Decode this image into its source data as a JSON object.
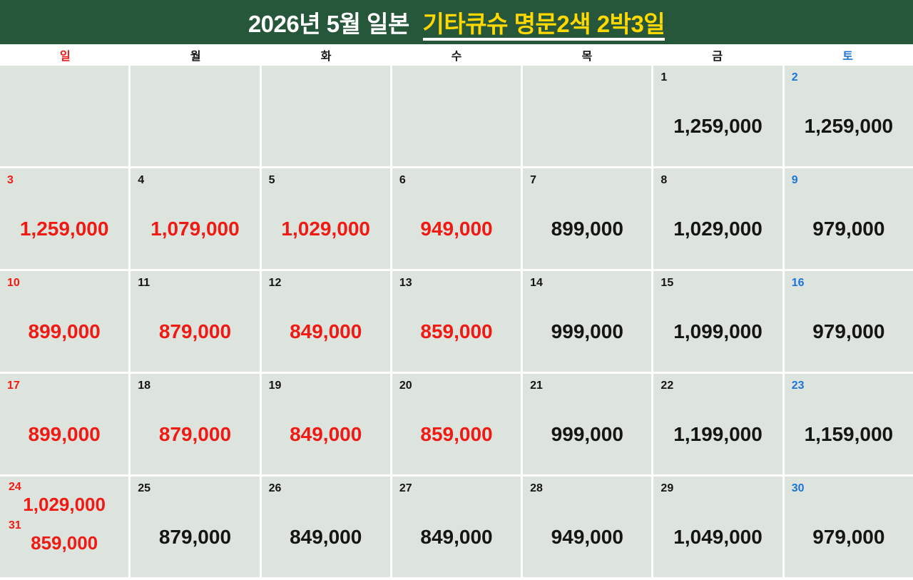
{
  "header": {
    "title_prefix": "2026년 5월 일본",
    "title_highlight": "기타큐슈 명문2색 2박3일"
  },
  "weekdays": [
    {
      "label": "일",
      "type": "sun"
    },
    {
      "label": "월",
      "type": "weekday"
    },
    {
      "label": "화",
      "type": "weekday"
    },
    {
      "label": "수",
      "type": "weekday"
    },
    {
      "label": "목",
      "type": "weekday"
    },
    {
      "label": "금",
      "type": "weekday"
    },
    {
      "label": "토",
      "type": "sat"
    }
  ],
  "colors": {
    "header_bg": "#27573a",
    "highlight": "#ffd800",
    "cell_bg": "#dde4dd",
    "red": "#f01a14",
    "blue": "#1b74d6",
    "black": "#151515"
  },
  "weeks": [
    {
      "cells": [
        {
          "entries": []
        },
        {
          "entries": []
        },
        {
          "entries": []
        },
        {
          "entries": []
        },
        {
          "entries": []
        },
        {
          "entries": [
            {
              "day": "1",
              "day_color": "black",
              "price": "1,259,000",
              "price_color": "black"
            }
          ]
        },
        {
          "entries": [
            {
              "day": "2",
              "day_color": "blue",
              "price": "1,259,000",
              "price_color": "black"
            }
          ]
        }
      ]
    },
    {
      "cells": [
        {
          "entries": [
            {
              "day": "3",
              "day_color": "red",
              "price": "1,259,000",
              "price_color": "red"
            }
          ]
        },
        {
          "entries": [
            {
              "day": "4",
              "day_color": "black",
              "price": "1,079,000",
              "price_color": "red"
            }
          ]
        },
        {
          "entries": [
            {
              "day": "5",
              "day_color": "black",
              "price": "1,029,000",
              "price_color": "red"
            }
          ]
        },
        {
          "entries": [
            {
              "day": "6",
              "day_color": "black",
              "price": "949,000",
              "price_color": "red"
            }
          ]
        },
        {
          "entries": [
            {
              "day": "7",
              "day_color": "black",
              "price": "899,000",
              "price_color": "black"
            }
          ]
        },
        {
          "entries": [
            {
              "day": "8",
              "day_color": "black",
              "price": "1,029,000",
              "price_color": "black"
            }
          ]
        },
        {
          "entries": [
            {
              "day": "9",
              "day_color": "blue",
              "price": "979,000",
              "price_color": "black"
            }
          ]
        }
      ]
    },
    {
      "cells": [
        {
          "entries": [
            {
              "day": "10",
              "day_color": "red",
              "price": "899,000",
              "price_color": "red"
            }
          ]
        },
        {
          "entries": [
            {
              "day": "11",
              "day_color": "black",
              "price": "879,000",
              "price_color": "red"
            }
          ]
        },
        {
          "entries": [
            {
              "day": "12",
              "day_color": "black",
              "price": "849,000",
              "price_color": "red"
            }
          ]
        },
        {
          "entries": [
            {
              "day": "13",
              "day_color": "black",
              "price": "859,000",
              "price_color": "red"
            }
          ]
        },
        {
          "entries": [
            {
              "day": "14",
              "day_color": "black",
              "price": "999,000",
              "price_color": "black"
            }
          ]
        },
        {
          "entries": [
            {
              "day": "15",
              "day_color": "black",
              "price": "1,099,000",
              "price_color": "black"
            }
          ]
        },
        {
          "entries": [
            {
              "day": "16",
              "day_color": "blue",
              "price": "979,000",
              "price_color": "black"
            }
          ]
        }
      ]
    },
    {
      "cells": [
        {
          "entries": [
            {
              "day": "17",
              "day_color": "red",
              "price": "899,000",
              "price_color": "red"
            }
          ]
        },
        {
          "entries": [
            {
              "day": "18",
              "day_color": "black",
              "price": "879,000",
              "price_color": "red"
            }
          ]
        },
        {
          "entries": [
            {
              "day": "19",
              "day_color": "black",
              "price": "849,000",
              "price_color": "red"
            }
          ]
        },
        {
          "entries": [
            {
              "day": "20",
              "day_color": "black",
              "price": "859,000",
              "price_color": "red"
            }
          ]
        },
        {
          "entries": [
            {
              "day": "21",
              "day_color": "black",
              "price": "999,000",
              "price_color": "black"
            }
          ]
        },
        {
          "entries": [
            {
              "day": "22",
              "day_color": "black",
              "price": "1,199,000",
              "price_color": "black"
            }
          ]
        },
        {
          "entries": [
            {
              "day": "23",
              "day_color": "blue",
              "price": "1,159,000",
              "price_color": "black"
            }
          ]
        }
      ]
    },
    {
      "cells": [
        {
          "entries": [
            {
              "day": "24",
              "day_color": "red",
              "price": "1,029,000",
              "price_color": "red"
            },
            {
              "day": "31",
              "day_color": "red",
              "price": "859,000",
              "price_color": "red"
            }
          ]
        },
        {
          "entries": [
            {
              "day": "25",
              "day_color": "black",
              "price": "879,000",
              "price_color": "black"
            }
          ]
        },
        {
          "entries": [
            {
              "day": "26",
              "day_color": "black",
              "price": "849,000",
              "price_color": "black"
            }
          ]
        },
        {
          "entries": [
            {
              "day": "27",
              "day_color": "black",
              "price": "849,000",
              "price_color": "black"
            }
          ]
        },
        {
          "entries": [
            {
              "day": "28",
              "day_color": "black",
              "price": "949,000",
              "price_color": "black"
            }
          ]
        },
        {
          "entries": [
            {
              "day": "29",
              "day_color": "black",
              "price": "1,049,000",
              "price_color": "black"
            }
          ]
        },
        {
          "entries": [
            {
              "day": "30",
              "day_color": "blue",
              "price": "979,000",
              "price_color": "black"
            }
          ]
        }
      ]
    }
  ]
}
